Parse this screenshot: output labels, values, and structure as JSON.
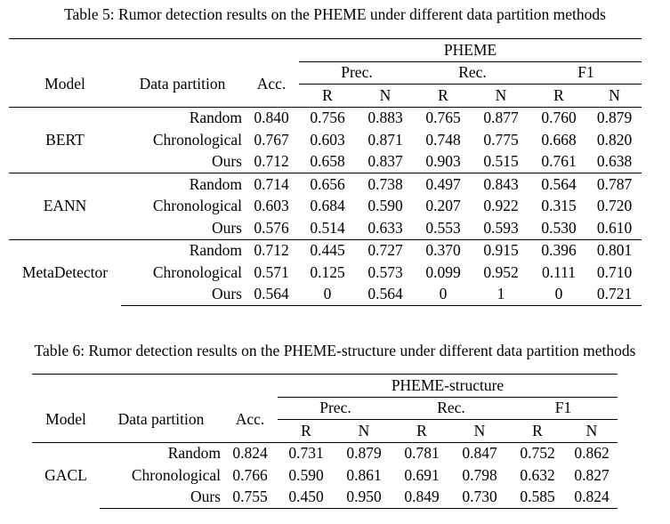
{
  "table5": {
    "caption": "Table 5: Rumor detection results on the PHEME under different data partition methods",
    "dataset": "PHEME",
    "headers": {
      "model": "Model",
      "partition": "Data partition",
      "acc": "Acc.",
      "prec": "Prec.",
      "rec": "Rec.",
      "f1": "F1",
      "r": "R",
      "n": "N"
    },
    "groups": [
      {
        "model": "BERT",
        "rows": [
          [
            "Random",
            "0.840",
            "0.756",
            "0.883",
            "0.765",
            "0.877",
            "0.760",
            "0.879"
          ],
          [
            "Chronological",
            "0.767",
            "0.603",
            "0.871",
            "0.748",
            "0.775",
            "0.668",
            "0.820"
          ],
          [
            "Ours",
            "0.712",
            "0.658",
            "0.837",
            "0.903",
            "0.515",
            "0.761",
            "0.638"
          ]
        ]
      },
      {
        "model": "EANN",
        "rows": [
          [
            "Random",
            "0.714",
            "0.656",
            "0.738",
            "0.497",
            "0.843",
            "0.564",
            "0.787"
          ],
          [
            "Chronological",
            "0.603",
            "0.684",
            "0.590",
            "0.207",
            "0.922",
            "0.315",
            "0.720"
          ],
          [
            "Ours",
            "0.576",
            "0.514",
            "0.633",
            "0.553",
            "0.593",
            "0.530",
            "0.610"
          ]
        ]
      },
      {
        "model": "MetaDetector",
        "rows": [
          [
            "Random",
            "0.712",
            "0.445",
            "0.727",
            "0.370",
            "0.915",
            "0.396",
            "0.801"
          ],
          [
            "Chronological",
            "0.571",
            "0.125",
            "0.573",
            "0.099",
            "0.952",
            "0.111",
            "0.710"
          ],
          [
            "Ours",
            "0.564",
            "0",
            "0.564",
            "0",
            "1",
            "0",
            "0.721"
          ]
        ]
      }
    ]
  },
  "table6": {
    "caption": "Table 6: Rumor detection results on the PHEME-structure under different data partition methods",
    "dataset": "PHEME-structure",
    "headers": {
      "model": "Model",
      "partition": "Data partition",
      "acc": "Acc.",
      "prec": "Prec.",
      "rec": "Rec.",
      "f1": "F1",
      "r": "R",
      "n": "N"
    },
    "groups": [
      {
        "model": "GACL",
        "rows": [
          [
            "Random",
            "0.824",
            "0.731",
            "0.879",
            "0.781",
            "0.847",
            "0.752",
            "0.862"
          ],
          [
            "Chronological",
            "0.766",
            "0.590",
            "0.861",
            "0.691",
            "0.798",
            "0.632",
            "0.827"
          ],
          [
            "Ours",
            "0.755",
            "0.450",
            "0.950",
            "0.849",
            "0.730",
            "0.585",
            "0.824"
          ]
        ]
      }
    ]
  }
}
